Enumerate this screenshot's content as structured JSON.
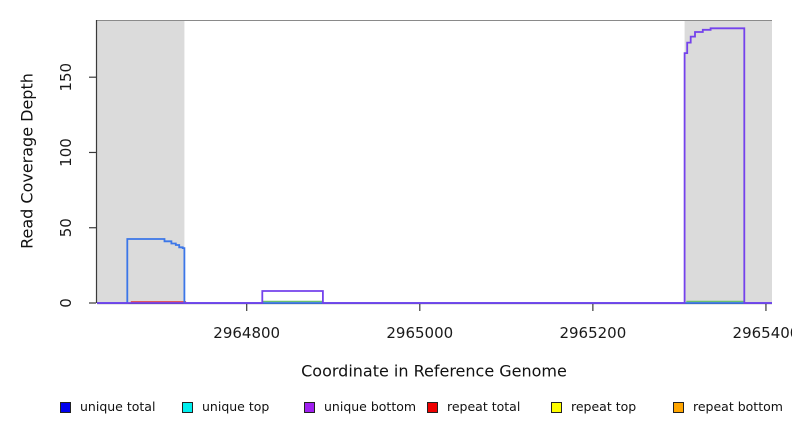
{
  "chart_data": {
    "type": "line",
    "title": "",
    "xlabel": "Coordinate in Reference Genome",
    "ylabel": "Read Coverage Depth",
    "xlim": [
      2964627,
      2965407
    ],
    "ylim": [
      0,
      188
    ],
    "grid": false,
    "band_color": "#dbdbdb",
    "axis_color": "#3a3a3a",
    "box_top_color": "#8a8a8a",
    "x_ticks": [
      {
        "value": 2964800,
        "label": "2964800"
      },
      {
        "value": 2965000,
        "label": "2965000"
      },
      {
        "value": 2965200,
        "label": "2965200"
      },
      {
        "value": 2965400,
        "label": "2965400"
      }
    ],
    "y_ticks": [
      {
        "value": 0,
        "label": "0"
      },
      {
        "value": 50,
        "label": "50"
      },
      {
        "value": 100,
        "label": "100"
      },
      {
        "value": 150,
        "label": "150"
      }
    ],
    "shaded_regions": [
      {
        "x0": 2964627,
        "x1": 2964728
      },
      {
        "x0": 2965306,
        "x1": 2965407
      }
    ],
    "series": [
      {
        "name": "repeat total",
        "color": "#e04848",
        "width": 1.4,
        "segments": [
          [
            [
              2964666,
              0.8
            ],
            [
              2964730,
              0.8
            ]
          ]
        ]
      },
      {
        "name": "low green trace",
        "color": "#6cc06c",
        "width": 1.4,
        "segments": [
          [
            [
              2964818,
              1
            ],
            [
              2964888,
              1
            ]
          ],
          [
            [
              2965308,
              1
            ],
            [
              2965375,
              1
            ]
          ]
        ]
      },
      {
        "name": "unique total",
        "color": "#3b76e8",
        "width": 1.8,
        "segments": [
          [
            [
              2964627,
              0
            ],
            [
              2964662,
              0
            ],
            [
              2964662,
              42.5
            ],
            [
              2964705,
              42.5
            ],
            [
              2964705,
              41
            ],
            [
              2964713,
              41
            ],
            [
              2964713,
              39.5
            ],
            [
              2964718,
              39.5
            ],
            [
              2964718,
              38.5
            ],
            [
              2964722,
              38.5
            ],
            [
              2964722,
              37
            ],
            [
              2964726,
              37
            ],
            [
              2964726,
              36.5
            ],
            [
              2964728,
              36.5
            ],
            [
              2964728,
              0
            ],
            [
              2965407,
              0
            ]
          ]
        ]
      },
      {
        "name": "unique bottom",
        "color": "#7442ec",
        "width": 1.8,
        "segments": [
          [
            [
              2964627,
              0
            ],
            [
              2964818,
              0
            ],
            [
              2964818,
              8
            ],
            [
              2964888,
              8
            ],
            [
              2964888,
              0
            ],
            [
              2965306,
              0
            ],
            [
              2965306,
              166
            ],
            [
              2965309,
              166
            ],
            [
              2965309,
              173
            ],
            [
              2965313,
              173
            ],
            [
              2965313,
              177
            ],
            [
              2965318,
              177
            ],
            [
              2965318,
              180
            ],
            [
              2965327,
              180
            ],
            [
              2965327,
              181.5
            ],
            [
              2965336,
              181.5
            ],
            [
              2965336,
              182.5
            ],
            [
              2965375,
              182.5
            ],
            [
              2965375,
              0
            ],
            [
              2965407,
              0
            ]
          ]
        ]
      }
    ],
    "legend": {
      "position": "bottom",
      "x_positions": [
        60,
        182,
        304,
        427,
        551,
        673
      ],
      "items": [
        {
          "label": "unique total",
          "fill": "#0000ee"
        },
        {
          "label": "unique top",
          "fill": "#00eeee"
        },
        {
          "label": "unique bottom",
          "fill": "#a020f0"
        },
        {
          "label": "repeat total",
          "fill": "#ee0000"
        },
        {
          "label": "repeat top",
          "fill": "#ffff00"
        },
        {
          "label": "repeat bottom",
          "fill": "#ffa500"
        }
      ]
    }
  }
}
